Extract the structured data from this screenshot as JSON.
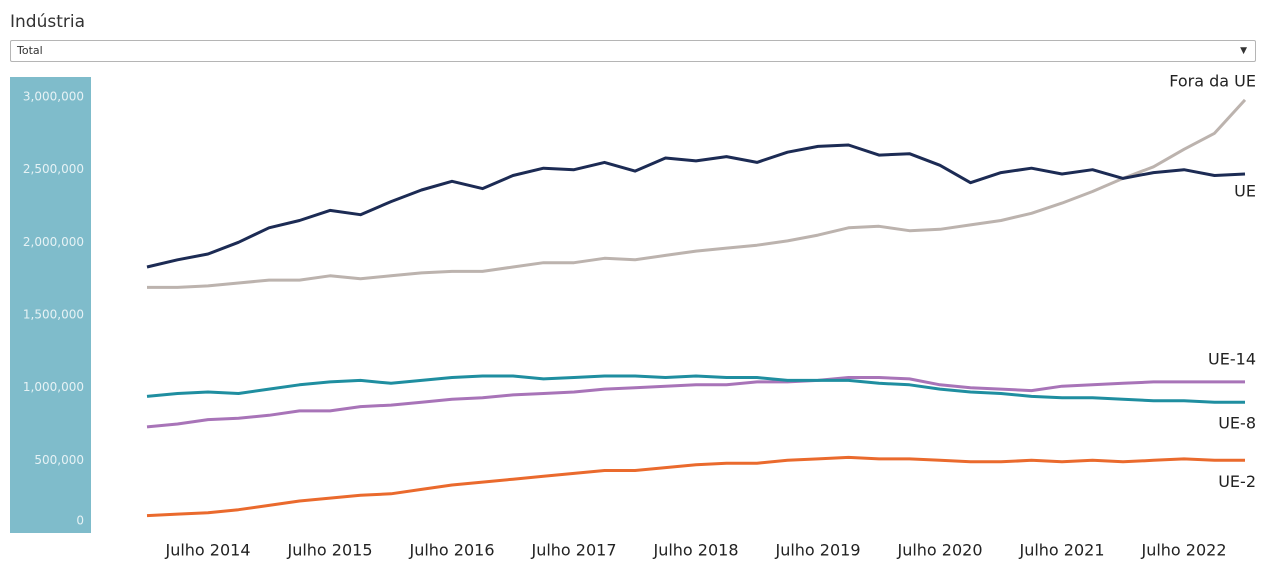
{
  "filter": {
    "label": "Indústria",
    "selected": "Total"
  },
  "chart_data": {
    "type": "line",
    "categories": [
      null,
      null,
      "Julho 2014",
      null,
      null,
      null,
      "Julho 2015",
      null,
      null,
      null,
      "Julho 2016",
      null,
      null,
      null,
      "Julho 2017",
      null,
      null,
      null,
      "Julho 2018",
      null,
      null,
      null,
      "Julho 2019",
      null,
      null,
      null,
      "Julho 2020",
      null,
      null,
      null,
      "Julho 2021",
      null,
      null,
      null,
      "Julho 2022",
      null,
      null
    ],
    "ylim": [
      0,
      3000000
    ],
    "yticks": [
      0,
      {
        "value": 500000,
        "label": "500,000"
      },
      {
        "value": 1000000,
        "label": "1,000,000"
      },
      {
        "value": 1500000,
        "label": "1,500,000"
      },
      {
        "value": 2000000,
        "label": "2,000,000"
      },
      {
        "value": 2500000,
        "label": "2,500,000"
      },
      {
        "value": 3000000,
        "label": "3,000,000"
      }
    ],
    "grid": false,
    "series": [
      {
        "name": "Fora da UE",
        "color": "#bcb3ae",
        "values": [
          1690000,
          1690000,
          1700000,
          1720000,
          1740000,
          1740000,
          1770000,
          1750000,
          1770000,
          1790000,
          1800000,
          1800000,
          1830000,
          1860000,
          1860000,
          1890000,
          1880000,
          1910000,
          1940000,
          1960000,
          1980000,
          2010000,
          2050000,
          2100000,
          2110000,
          2080000,
          2090000,
          2120000,
          2150000,
          2200000,
          2270000,
          2350000,
          2440000,
          2520000,
          2640000,
          2750000,
          2980000
        ]
      },
      {
        "name": "UE",
        "color": "#1c2b54",
        "values": [
          1830000,
          1880000,
          1920000,
          2000000,
          2100000,
          2150000,
          2220000,
          2190000,
          2280000,
          2360000,
          2420000,
          2370000,
          2460000,
          2510000,
          2500000,
          2550000,
          2490000,
          2580000,
          2560000,
          2590000,
          2550000,
          2620000,
          2660000,
          2670000,
          2600000,
          2610000,
          2530000,
          2410000,
          2480000,
          2510000,
          2470000,
          2500000,
          2440000,
          2480000,
          2500000,
          2460000,
          2470000
        ]
      },
      {
        "name": "UE-14",
        "color": "#a874b8",
        "values": [
          730000,
          750000,
          780000,
          790000,
          810000,
          840000,
          840000,
          870000,
          880000,
          900000,
          920000,
          930000,
          950000,
          960000,
          970000,
          990000,
          1000000,
          1010000,
          1020000,
          1020000,
          1040000,
          1040000,
          1050000,
          1070000,
          1070000,
          1060000,
          1020000,
          1000000,
          990000,
          980000,
          1010000,
          1020000,
          1030000,
          1040000,
          1040000,
          1040000,
          1040000
        ]
      },
      {
        "name": "UE-8",
        "color": "#1f8ea0",
        "values": [
          940000,
          960000,
          970000,
          960000,
          990000,
          1020000,
          1040000,
          1050000,
          1030000,
          1050000,
          1070000,
          1080000,
          1080000,
          1060000,
          1070000,
          1080000,
          1080000,
          1070000,
          1080000,
          1070000,
          1070000,
          1050000,
          1050000,
          1050000,
          1030000,
          1020000,
          990000,
          970000,
          960000,
          940000,
          930000,
          930000,
          920000,
          910000,
          910000,
          900000,
          900000
        ]
      },
      {
        "name": "UE-2",
        "color": "#ea6a2d",
        "values": [
          120000,
          130000,
          140000,
          160000,
          190000,
          220000,
          240000,
          260000,
          270000,
          300000,
          330000,
          350000,
          370000,
          390000,
          410000,
          430000,
          430000,
          450000,
          470000,
          480000,
          480000,
          500000,
          510000,
          520000,
          510000,
          510000,
          500000,
          490000,
          490000,
          500000,
          490000,
          500000,
          490000,
          500000,
          510000,
          500000,
          500000
        ]
      }
    ]
  }
}
